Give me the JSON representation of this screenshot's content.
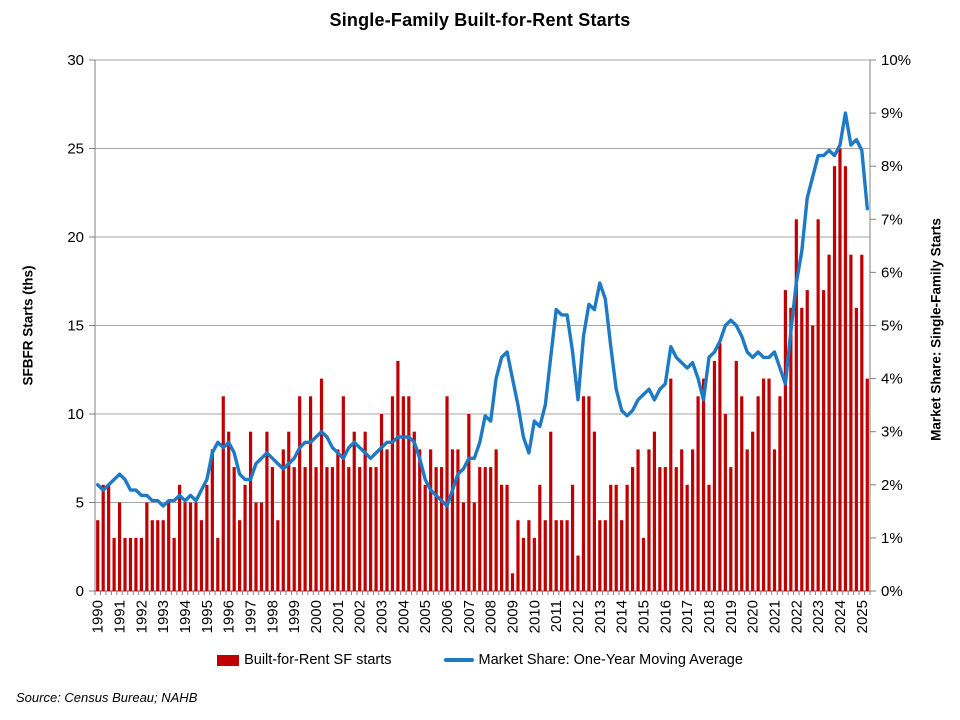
{
  "title": "Single-Family Built-for-Rent Starts",
  "source_note": "Source: Census Bureau; NAHB",
  "colors": {
    "bar": "#C00000",
    "line": "#1E7AC4",
    "gridline": "#A6A6A6",
    "axis": "#808080",
    "zero_line": "#595959",
    "text": "#000000"
  },
  "chart_data": {
    "type": "combo",
    "title": "Single-Family Built-for-Rent Starts",
    "x_frequency": "quarterly",
    "axes": {
      "left": {
        "label": "SFBFR Starts (ths)",
        "ticks": [
          0,
          5,
          10,
          15,
          20,
          25,
          30
        ],
        "min": 0,
        "max": 30
      },
      "right": {
        "label": "Market Share: Single-Family Starts",
        "tick_labels": [
          "0%",
          "1%",
          "2%",
          "3%",
          "4%",
          "5%",
          "6%",
          "7%",
          "8%",
          "9%",
          "10%"
        ],
        "min": 0,
        "max": 10
      },
      "x": {
        "years": [
          "1990",
          "1991",
          "1992",
          "1993",
          "1994",
          "1995",
          "1996",
          "1997",
          "1998",
          "1999",
          "2000",
          "2001",
          "2002",
          "2003",
          "2004",
          "2005",
          "2006",
          "2007",
          "2008",
          "2009",
          "2010",
          "2011",
          "2012",
          "2013",
          "2014",
          "2015",
          "2016",
          "2017",
          "2018",
          "2019",
          "2020",
          "2021",
          "2022",
          "2023",
          "2024",
          "2025"
        ]
      }
    },
    "series": [
      {
        "name": "Built-for-Rent SF starts",
        "type": "bar",
        "color": "#C00000",
        "axis": "left",
        "values": [
          4,
          6,
          6,
          3,
          5,
          3,
          3,
          3,
          3,
          5,
          4,
          4,
          4,
          5,
          3,
          6,
          5,
          5,
          5,
          4,
          6,
          8,
          3,
          11,
          9,
          7,
          4,
          6,
          9,
          5,
          5,
          9,
          7,
          4,
          8,
          9,
          7,
          11,
          7,
          11,
          7,
          12,
          7,
          7,
          8,
          11,
          7,
          9,
          7,
          9,
          7,
          7,
          10,
          8,
          11,
          13,
          11,
          11,
          9,
          8,
          6,
          8,
          7,
          7,
          11,
          8,
          8,
          5,
          10,
          5,
          7,
          7,
          7,
          8,
          6,
          6,
          1,
          4,
          3,
          4,
          3,
          6,
          4,
          9,
          4,
          4,
          4,
          6,
          2,
          11,
          11,
          9,
          4,
          4,
          6,
          6,
          4,
          6,
          7,
          8,
          3,
          8,
          9,
          7,
          7,
          12,
          7,
          8,
          6,
          8,
          11,
          12,
          6,
          13,
          14,
          10,
          7,
          13,
          11,
          8,
          9,
          11,
          12,
          12,
          8,
          11,
          17,
          16,
          21,
          16,
          17,
          15,
          21,
          17,
          19,
          24,
          25,
          24,
          19,
          16,
          19,
          12
        ]
      },
      {
        "name": "Market Share: One-Year Moving Average",
        "type": "line",
        "color": "#1E7AC4",
        "axis": "right",
        "values": [
          2.0,
          1.9,
          2.0,
          2.1,
          2.2,
          2.1,
          1.9,
          1.9,
          1.8,
          1.8,
          1.7,
          1.7,
          1.6,
          1.7,
          1.7,
          1.8,
          1.7,
          1.8,
          1.7,
          1.9,
          2.1,
          2.6,
          2.8,
          2.7,
          2.8,
          2.6,
          2.2,
          2.1,
          2.1,
          2.4,
          2.5,
          2.6,
          2.5,
          2.4,
          2.3,
          2.4,
          2.5,
          2.7,
          2.8,
          2.8,
          2.9,
          3.0,
          2.9,
          2.7,
          2.6,
          2.5,
          2.7,
          2.8,
          2.7,
          2.6,
          2.5,
          2.6,
          2.7,
          2.8,
          2.8,
          2.9,
          2.9,
          2.9,
          2.8,
          2.5,
          2.1,
          1.9,
          1.8,
          1.7,
          1.6,
          1.9,
          2.2,
          2.3,
          2.5,
          2.5,
          2.8,
          3.3,
          3.2,
          4.0,
          4.4,
          4.5,
          4.0,
          3.5,
          2.9,
          2.6,
          3.2,
          3.1,
          3.5,
          4.4,
          5.3,
          5.2,
          5.2,
          4.5,
          3.6,
          4.8,
          5.4,
          5.3,
          5.8,
          5.5,
          4.6,
          3.8,
          3.4,
          3.3,
          3.4,
          3.6,
          3.7,
          3.8,
          3.6,
          3.8,
          3.9,
          4.6,
          4.4,
          4.3,
          4.2,
          4.3,
          4.0,
          3.6,
          4.4,
          4.5,
          4.7,
          5.0,
          5.1,
          5.0,
          4.8,
          4.5,
          4.4,
          4.5,
          4.4,
          4.4,
          4.5,
          4.2,
          3.9,
          4.9,
          5.8,
          6.4,
          7.4,
          7.8,
          8.2,
          8.2,
          8.3,
          8.2,
          8.4,
          9.0,
          8.4,
          8.5,
          8.3,
          7.2
        ]
      }
    ],
    "layout_hints": {
      "grid": "horizontal",
      "legend_position": "bottom-center"
    }
  }
}
